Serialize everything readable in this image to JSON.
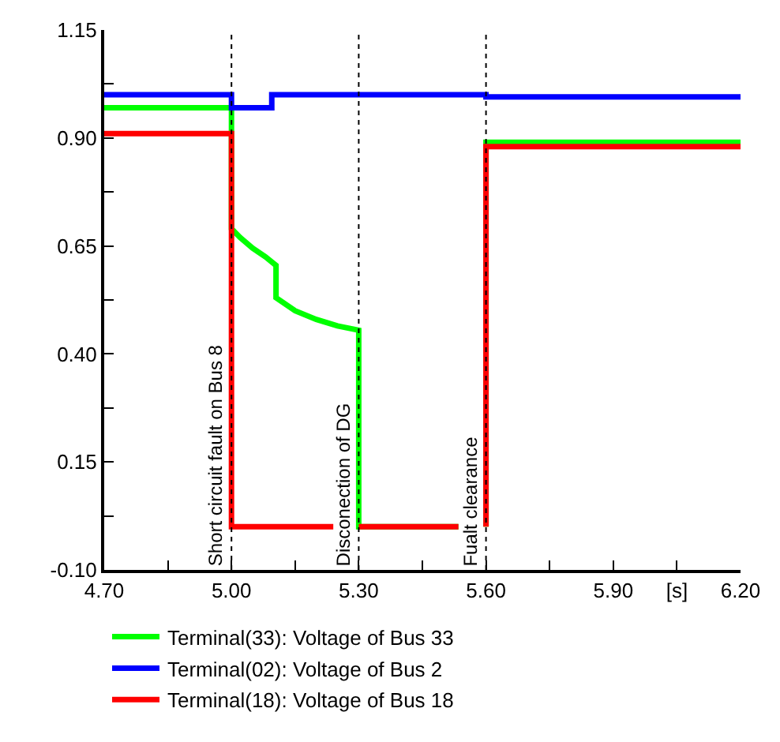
{
  "chart_data": {
    "type": "line",
    "xlim": [
      4.7,
      6.2
    ],
    "ylim": [
      -0.1,
      1.15
    ],
    "xticks": [
      {
        "value": 4.7,
        "label": "4.70"
      },
      {
        "value": 4.85,
        "label": null
      },
      {
        "value": 5.0,
        "label": "5.00"
      },
      {
        "value": 5.15,
        "label": null
      },
      {
        "value": 5.3,
        "label": "5.30"
      },
      {
        "value": 5.45,
        "label": null
      },
      {
        "value": 5.6,
        "label": "5.60"
      },
      {
        "value": 5.75,
        "label": null
      },
      {
        "value": 5.9,
        "label": "5.90"
      },
      {
        "value": 6.05,
        "label": "[s]"
      },
      {
        "value": 6.2,
        "label": "6.20"
      }
    ],
    "yticks": [
      {
        "value": -0.1,
        "label": "-0.10"
      },
      {
        "value": 0.025,
        "label": null
      },
      0.15,
      {
        "value": 0.275,
        "label": null
      },
      {
        "value": 0.4,
        "label": "0.40"
      },
      {
        "value": 0.525,
        "label": null
      },
      0.65,
      {
        "value": 0.775,
        "label": null
      },
      {
        "value": 0.9,
        "label": "0.90"
      },
      {
        "value": 1.025,
        "label": null
      },
      1.15
    ],
    "series": [
      {
        "name": "Terminal(33): Voltage of Bus 33",
        "color": "#00ff00",
        "x": [
          4.7,
          5.0,
          5.0,
          5.02,
          5.05,
          5.08,
          5.105,
          5.105,
          5.15,
          5.2,
          5.25,
          5.3,
          5.3,
          5.535,
          5.56,
          5.6,
          5.6,
          6.2
        ],
        "values": [
          0.97,
          0.97,
          0.69,
          0.67,
          0.645,
          0.625,
          0.605,
          0.53,
          0.5,
          0.48,
          0.465,
          0.455,
          0.0,
          0.0,
          null,
          0.0,
          0.89,
          0.89
        ]
      },
      {
        "name": "Terminal(02): Voltage of Bus 2",
        "color": "#0000ff",
        "x": [
          4.7,
          5.0,
          5.0,
          5.095,
          5.095,
          5.6,
          5.6,
          6.2
        ],
        "values": [
          1.0,
          1.0,
          0.97,
          0.97,
          1.0,
          1.0,
          0.995,
          0.995
        ]
      },
      {
        "name": "Terminal(18): Voltage of Bus 18",
        "color": "#ff0000",
        "x": [
          4.7,
          5.0,
          5.0,
          5.24,
          5.27,
          5.3,
          5.535,
          5.56,
          5.6,
          5.6,
          6.2
        ],
        "values": [
          0.91,
          0.91,
          0.0,
          0.0,
          null,
          0.0,
          0.0,
          null,
          0.0,
          0.88,
          0.88
        ]
      }
    ],
    "ref_lines": [
      {
        "axis": "x",
        "value": 5.0,
        "label": "Short circuit fault on Bus 8",
        "color": "#000000",
        "line_style": "dotted"
      },
      {
        "axis": "x",
        "value": 5.3,
        "label": "Disconection of DG",
        "color": "#000000",
        "line_style": "dotted"
      },
      {
        "axis": "x",
        "value": 5.6,
        "label": "Fualt clearance",
        "color": "#000000",
        "line_style": "dotted"
      }
    ],
    "legend": "bottom",
    "line_style": "solid",
    "marker": "none"
  }
}
